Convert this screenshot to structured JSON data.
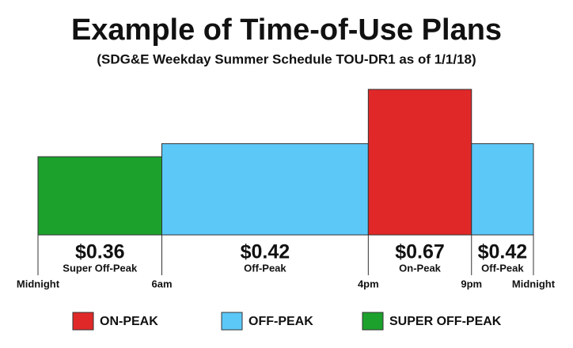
{
  "chart_data": {
    "type": "step-bar",
    "title": "Example of Time-of-Use Plans",
    "subtitle": "(SDG&E Weekday Summer Schedule TOU-DR1 as of 1/1/18)",
    "bins": [
      0,
      6,
      16,
      21,
      24
    ],
    "values": [
      0.36,
      0.42,
      0.67,
      0.42
    ],
    "value_labels": [
      "$0.36",
      "$0.42",
      "$0.67",
      "$0.42"
    ],
    "categories": [
      "Super Off-Peak",
      "Off-Peak",
      "On-Peak",
      "Off-Peak"
    ],
    "colors": [
      "#1ca22c",
      "#5cc8f8",
      "#e02828",
      "#5cc8f8"
    ],
    "xlim": [
      0,
      24
    ],
    "xticks": [
      {
        "value": 0,
        "label": "Midnight"
      },
      {
        "value": 6,
        "label": "6am"
      },
      {
        "value": 16,
        "label": "4pm"
      },
      {
        "value": 21,
        "label": "9pm"
      },
      {
        "value": 24,
        "label": "Midnight"
      }
    ],
    "ylim": [
      0,
      0.67
    ],
    "legend": [
      {
        "name": "ON-PEAK",
        "color": "#e02828"
      },
      {
        "name": "OFF-PEAK",
        "color": "#5cc8f8"
      },
      {
        "name": "SUPER OFF-PEAK",
        "color": "#1ca22c"
      }
    ]
  }
}
